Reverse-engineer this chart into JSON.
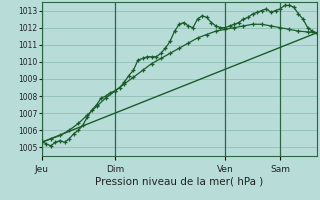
{
  "xlabel": "Pression niveau de la mer( hPa )",
  "ylim": [
    1004.5,
    1013.5
  ],
  "yticks": [
    1005,
    1006,
    1007,
    1008,
    1009,
    1010,
    1011,
    1012,
    1013
  ],
  "bg_color": "#b8ddd8",
  "grid_color": "#90c0b8",
  "line_color": "#1a5c2a",
  "day_labels": [
    "Jeu",
    "Dim",
    "Ven",
    "Sam"
  ],
  "day_positions": [
    0,
    16,
    40,
    52
  ],
  "xlim": [
    0,
    60
  ],
  "line1_x": [
    0,
    1,
    2,
    3,
    4,
    5,
    6,
    7,
    8,
    9,
    10,
    11,
    12,
    13,
    14,
    15,
    16,
    17,
    18,
    19,
    20,
    21,
    22,
    23,
    24,
    25,
    26,
    27,
    28,
    29,
    30,
    31,
    32,
    33,
    34,
    35,
    36,
    37,
    38,
    39,
    40,
    41,
    42,
    43,
    44,
    45,
    46,
    47,
    48,
    49,
    50,
    51,
    52,
    53,
    54,
    55,
    56,
    57,
    58,
    59,
    60
  ],
  "line1_y": [
    1005.4,
    1005.2,
    1005.1,
    1005.3,
    1005.4,
    1005.3,
    1005.5,
    1005.8,
    1006.0,
    1006.3,
    1006.8,
    1007.2,
    1007.5,
    1007.9,
    1008.0,
    1008.2,
    1008.3,
    1008.5,
    1008.8,
    1009.2,
    1009.5,
    1010.1,
    1010.2,
    1010.3,
    1010.3,
    1010.3,
    1010.5,
    1010.8,
    1011.2,
    1011.8,
    1012.2,
    1012.3,
    1012.1,
    1012.0,
    1012.5,
    1012.7,
    1012.6,
    1012.3,
    1012.1,
    1012.0,
    1012.0,
    1012.1,
    1012.2,
    1012.3,
    1012.5,
    1012.6,
    1012.8,
    1012.9,
    1013.0,
    1013.1,
    1012.9,
    1013.0,
    1013.1,
    1013.3,
    1013.3,
    1013.2,
    1012.8,
    1012.5,
    1012.0,
    1011.8,
    1011.7
  ],
  "line2_x": [
    0,
    2,
    4,
    6,
    8,
    10,
    12,
    14,
    16,
    18,
    20,
    22,
    24,
    26,
    28,
    30,
    32,
    34,
    36,
    38,
    40,
    42,
    44,
    46,
    48,
    50,
    52,
    54,
    56,
    58,
    60
  ],
  "line2_y": [
    1005.3,
    1005.5,
    1005.7,
    1006.0,
    1006.4,
    1006.9,
    1007.4,
    1007.9,
    1008.3,
    1008.7,
    1009.1,
    1009.5,
    1009.9,
    1010.2,
    1010.5,
    1010.8,
    1011.1,
    1011.4,
    1011.6,
    1011.8,
    1011.9,
    1012.0,
    1012.1,
    1012.2,
    1012.2,
    1012.1,
    1012.0,
    1011.9,
    1011.8,
    1011.75,
    1011.7
  ],
  "line3_x": [
    0,
    60
  ],
  "line3_y": [
    1005.3,
    1011.7
  ]
}
